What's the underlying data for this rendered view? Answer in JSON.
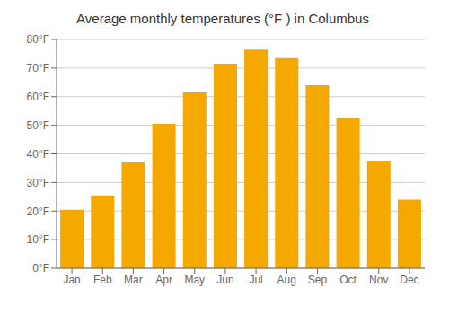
{
  "chart_data": {
    "type": "bar",
    "title": "Average monthly temperatures (°F ) in Columbus",
    "categories": [
      "Jan",
      "Feb",
      "Mar",
      "Apr",
      "May",
      "Jun",
      "Jul",
      "Aug",
      "Sep",
      "Oct",
      "Nov",
      "Dec"
    ],
    "values": [
      20.5,
      25.5,
      37.0,
      50.5,
      61.5,
      71.5,
      76.5,
      73.5,
      64.0,
      52.5,
      37.5,
      24.0
    ],
    "color": "#F5A800",
    "ylim": [
      0,
      80
    ],
    "yticks": [
      {
        "value": 0,
        "label": "0°F"
      },
      {
        "value": 10,
        "label": "10°F"
      },
      {
        "value": 20,
        "label": "20°F"
      },
      {
        "value": 30,
        "label": "30°F"
      },
      {
        "value": 40,
        "label": "40°F"
      },
      {
        "value": 50,
        "label": "50°F"
      },
      {
        "value": 60,
        "label": "60°F"
      },
      {
        "value": 70,
        "label": "70°F"
      },
      {
        "value": 80,
        "label": "80°F"
      }
    ],
    "grid": true
  }
}
